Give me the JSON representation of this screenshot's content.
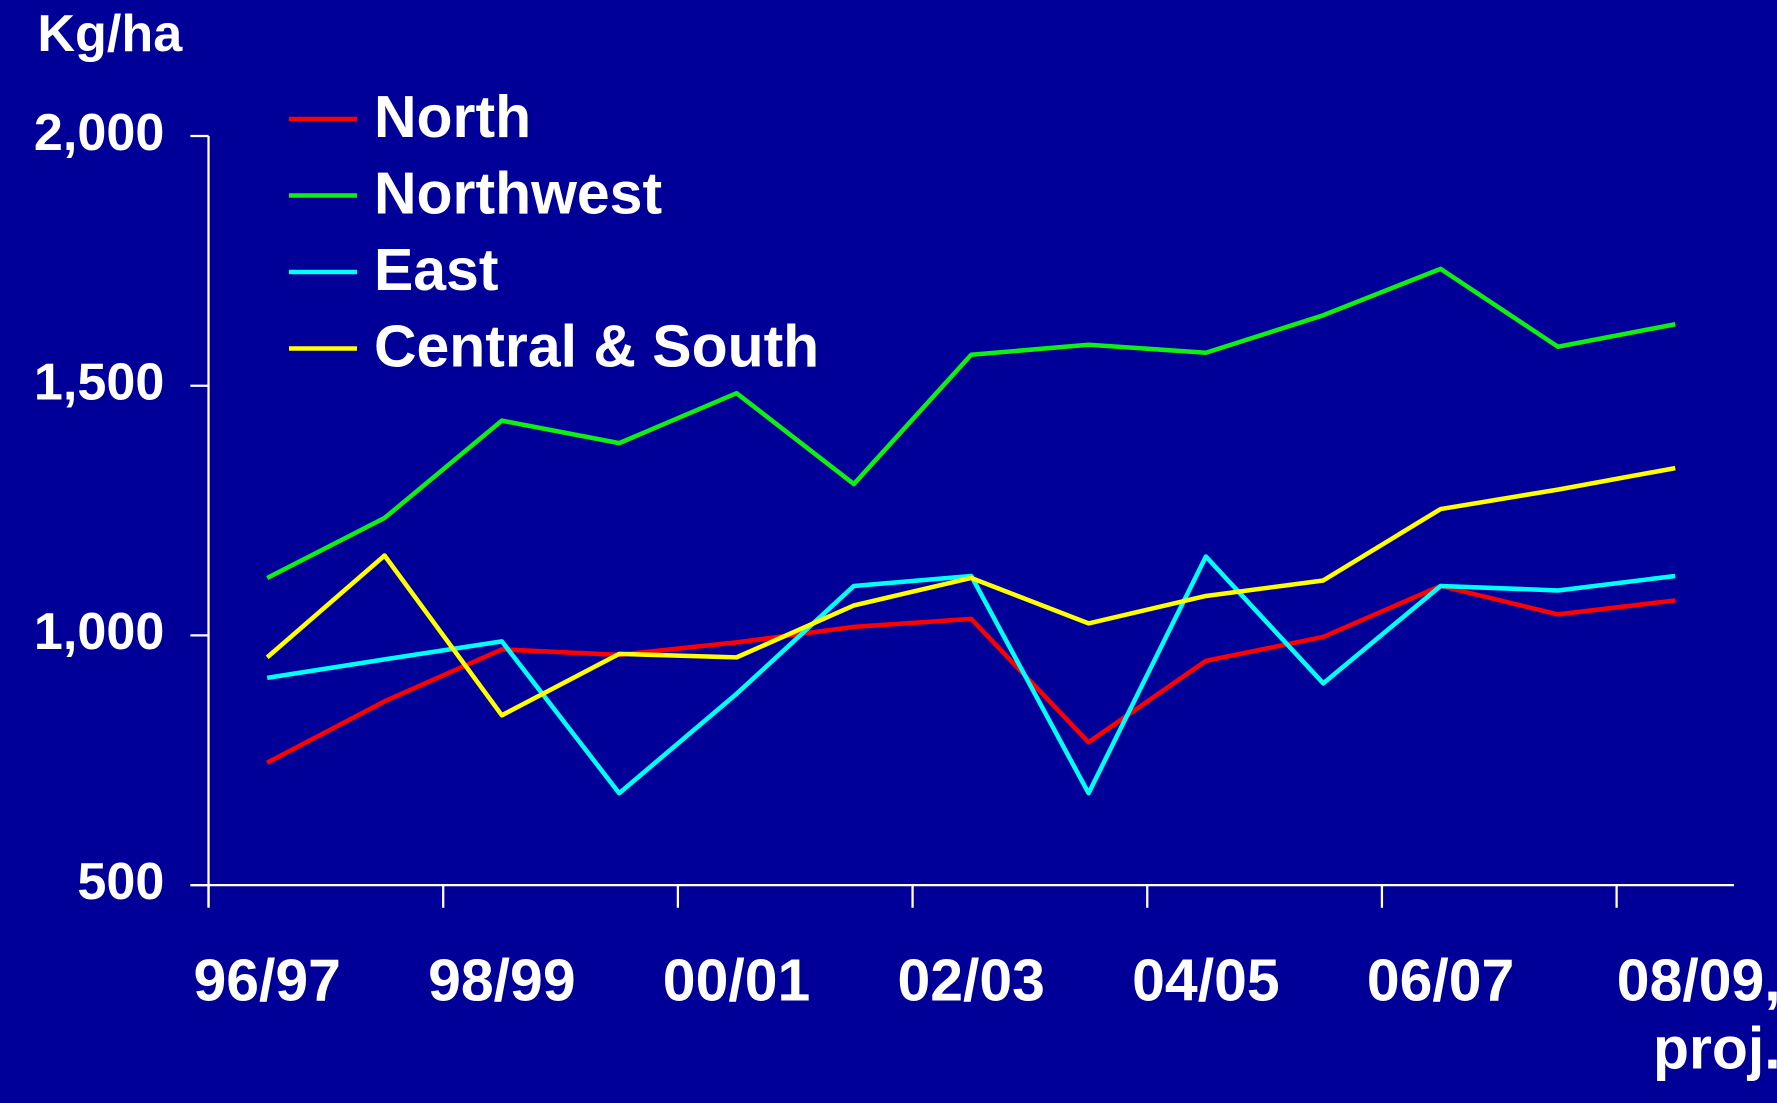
{
  "chart_data": {
    "type": "line",
    "y_label": "Kg/ha",
    "categories": [
      "96/97",
      null,
      "98/99",
      null,
      "00/01",
      null,
      "02/03",
      null,
      "04/05",
      null,
      "06/07",
      null,
      "08/09, proj."
    ],
    "series": [
      {
        "name": "North",
        "color": "#ff0000",
        "values": [
          745,
          868,
          972,
          961,
          986,
          1017,
          1033,
          786,
          949,
          997,
          1099,
          1042,
          1070
        ]
      },
      {
        "name": "Northwest",
        "color": "#11ee11",
        "values": [
          1115,
          1235,
          1430,
          1385,
          1485,
          1303,
          1562,
          1582,
          1566,
          1641,
          1734,
          1578,
          1623
        ]
      },
      {
        "name": "East",
        "color": "#00ffff",
        "values": [
          915,
          952,
          988,
          684,
          883,
          1099,
          1119,
          684,
          1158,
          904,
          1099,
          1090,
          1119
        ]
      },
      {
        "name": "Central & South",
        "color": "#ffff00",
        "values": [
          956,
          1160,
          840,
          963,
          956,
          1060,
          1115,
          1024,
          1079,
          1110,
          1253,
          1292,
          1335
        ]
      }
    ],
    "ylim": [
      500,
      2000
    ],
    "yticks": [
      500,
      {
        "value": 1000,
        "label": "1,000"
      },
      {
        "value": 1500,
        "label": "1,500"
      },
      {
        "value": 2000,
        "label": "2,000"
      }
    ],
    "legend": "top-left"
  }
}
